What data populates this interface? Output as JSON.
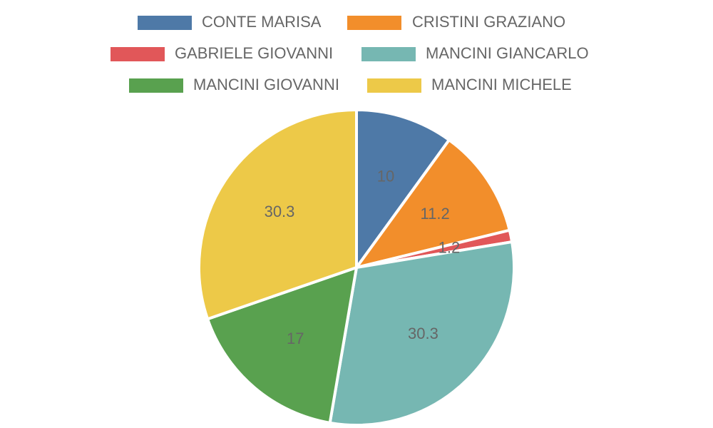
{
  "chart_data": {
    "type": "pie",
    "legend_position": "top",
    "slices": [
      {
        "name": "CONTE MARISA",
        "value": 10,
        "label": "10",
        "color": "#4e79a7"
      },
      {
        "name": "CRISTINI GRAZIANO",
        "value": 11.2,
        "label": "11.2",
        "color": "#f28e2b"
      },
      {
        "name": "GABRIELE GIOVANNI",
        "value": 1.2,
        "label": "1.2",
        "color": "#e15759"
      },
      {
        "name": "MANCINI GIANCARLO",
        "value": 30.3,
        "label": "30.3",
        "color": "#76b7b2"
      },
      {
        "name": "MANCINI GIOVANNI",
        "value": 17,
        "label": "17",
        "color": "#59a14f"
      },
      {
        "name": "MANCINI MICHELE",
        "value": 30.3,
        "label": "30.3",
        "color": "#edc948"
      }
    ]
  }
}
